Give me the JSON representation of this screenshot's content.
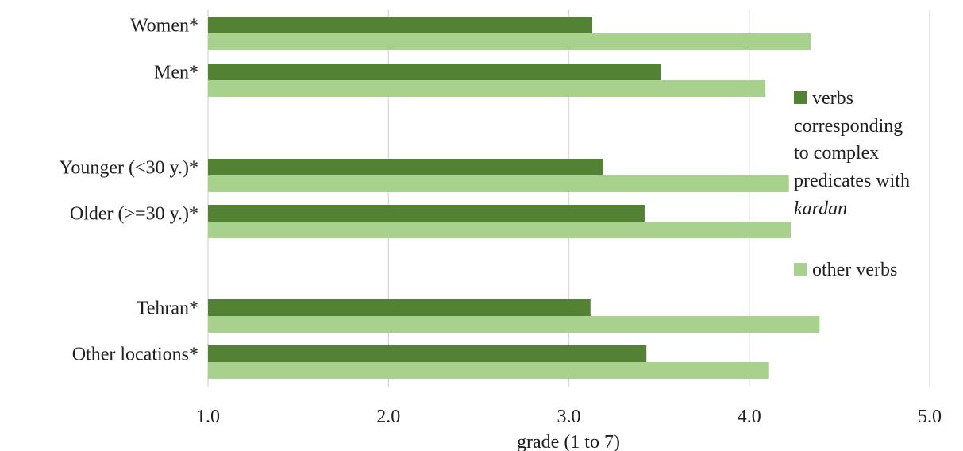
{
  "chart_data": {
    "type": "bar",
    "orientation": "horizontal",
    "categories": [
      "Women*",
      "Men*",
      "Younger (<30 y.)*",
      "Older (>=30 y.)*",
      "Tehran*",
      "Other locations*"
    ],
    "groups": [
      [
        0,
        1
      ],
      [
        2,
        3
      ],
      [
        4,
        5
      ]
    ],
    "series": [
      {
        "name": "verbs corresponding to complex predicates with kardan",
        "name_lines": [
          "verbs",
          "corresponding",
          "to complex",
          "predicates with",
          "kardan"
        ],
        "italic_line": 4,
        "color": "#548235",
        "values": [
          3.13,
          3.51,
          3.19,
          3.42,
          3.12,
          3.43
        ]
      },
      {
        "name": "other verbs",
        "name_lines": [
          "other verbs"
        ],
        "color": "#a9d18e",
        "values": [
          4.34,
          4.09,
          4.22,
          4.23,
          4.39,
          4.11
        ]
      }
    ],
    "xlabel": "grade (1 to 7)",
    "xlim": [
      1.0,
      5.0
    ],
    "xticks": [
      1.0,
      2.0,
      3.0,
      4.0,
      5.0
    ],
    "xtick_labels": [
      "1.0",
      "2.0",
      "3.0",
      "4.0",
      "5.0"
    ],
    "grid": true,
    "legend_position": "right"
  },
  "colors": {
    "grid": "#d9d9d9",
    "text": "#1f1f1f"
  }
}
